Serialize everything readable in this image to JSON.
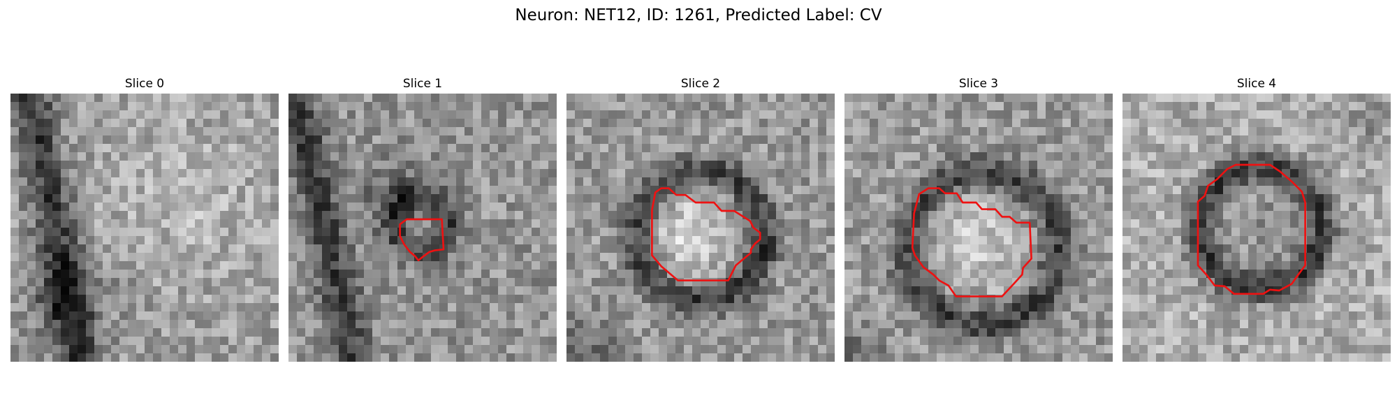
{
  "figure": {
    "title": "Neuron: NET12, ID: 1261, Predicted Label: CV"
  },
  "colors": {
    "contour": "#ee1111",
    "background": "#ffffff"
  },
  "panels": [
    {
      "title": "Slice 0",
      "vesicle": "none"
    },
    {
      "title": "Slice 1",
      "vesicle": "small dark ring"
    },
    {
      "title": "Slice 2",
      "vesicle": "bright core with dark ring"
    },
    {
      "title": "Slice 3",
      "vesicle": "bright core with dark ring"
    },
    {
      "title": "Slice 4",
      "vesicle": "dark ring"
    }
  ]
}
